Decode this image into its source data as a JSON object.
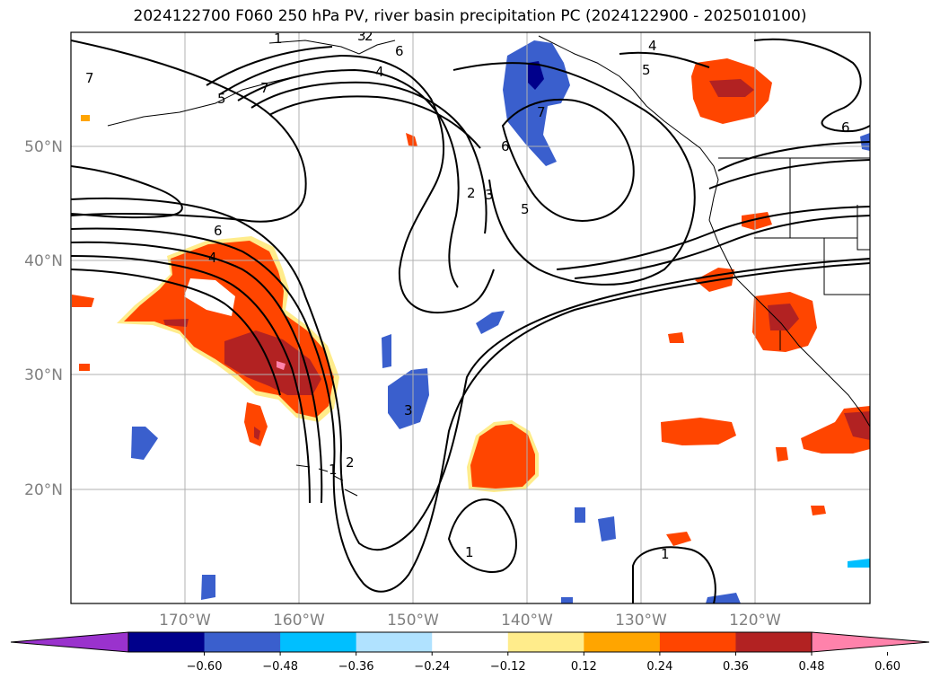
{
  "title": "2024122700 F060 250 hPa PV, river basin precipitation PC (2024122900 - 2025010100)",
  "lat_labels": [
    "50°N",
    "40°N",
    "30°N",
    "20°N"
  ],
  "lon_labels": [
    "170°W",
    "160°W",
    "150°W",
    "140°W",
    "130°W",
    "120°W"
  ],
  "colorbar": {
    "colors": [
      "#9a32cd",
      "#00008b",
      "#3a5fcd",
      "#00bfff",
      "#b0e2ff",
      "#ffffff",
      "#ffec8b",
      "#ffa500",
      "#ff4500",
      "#b22222",
      "#ff82ab"
    ],
    "tick_labels": [
      "−0.60",
      "−0.48",
      "−0.36",
      "−0.24",
      "−0.12",
      "0.12",
      "0.24",
      "0.36",
      "0.48",
      "0.60"
    ]
  },
  "contour_labels": [
    "7",
    "6",
    "5",
    "4",
    "3",
    "2",
    "1",
    "6",
    "4",
    "7",
    "6",
    "5",
    "4",
    "6",
    "2",
    "3",
    "5",
    "7",
    "3",
    "2",
    "1",
    "1",
    "1"
  ],
  "map_data": {
    "type": "contour-map",
    "field": "250 hPa PV",
    "shaded": "river basin precipitation PC",
    "lat_range": [
      10,
      60
    ],
    "lon_range": [
      -180,
      -110
    ],
    "grid": true
  }
}
